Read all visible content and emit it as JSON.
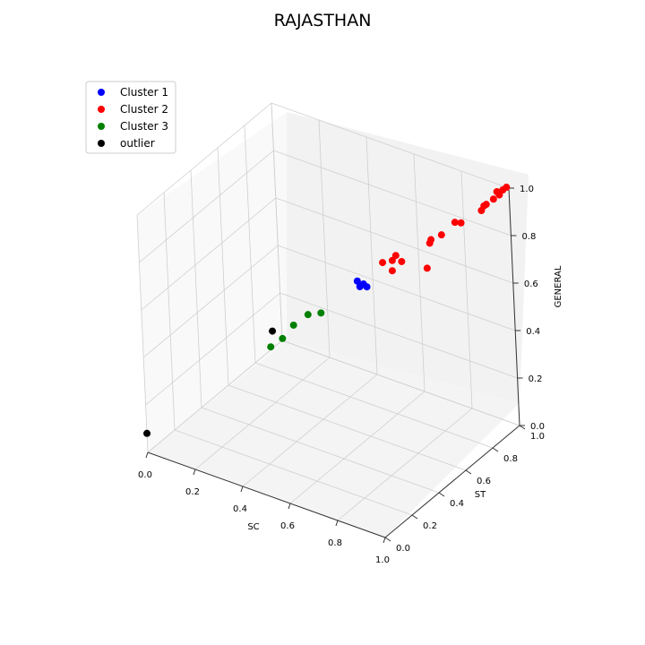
{
  "chart_data": {
    "type": "scatter3d",
    "title": "RAJASTHAN",
    "xlabel": "SC",
    "ylabel": "ST",
    "zlabel": "GENERAL",
    "xlim": [
      0,
      1
    ],
    "ylim": [
      0,
      1
    ],
    "zlim": [
      0,
      1
    ],
    "xticks": [
      "0.0",
      "0.2",
      "0.4",
      "0.6",
      "0.8",
      "1.0"
    ],
    "yticks": [
      "0.0",
      "0.2",
      "0.4",
      "0.6",
      "0.8",
      "1.0"
    ],
    "zticks": [
      "0.0",
      "0.2",
      "0.4",
      "0.6",
      "0.8",
      "1.0"
    ],
    "grid": true,
    "legend_position": "top-left",
    "series": [
      {
        "name": "Cluster 1",
        "color": "#0000ff",
        "points": [
          [
            0.56,
            0.62,
            0.63
          ],
          [
            0.57,
            0.62,
            0.61
          ],
          [
            0.58,
            0.63,
            0.62
          ],
          [
            0.6,
            0.62,
            0.62
          ]
        ]
      },
      {
        "name": "Cluster 2",
        "color": "#ff0000",
        "points": [
          [
            0.99,
            1.0,
            1.0
          ],
          [
            0.98,
            0.99,
            0.99
          ],
          [
            0.97,
            0.98,
            0.97
          ],
          [
            0.96,
            0.98,
            0.98
          ],
          [
            0.95,
            0.97,
            0.95
          ],
          [
            0.93,
            0.95,
            0.93
          ],
          [
            0.92,
            0.95,
            0.92
          ],
          [
            0.92,
            0.93,
            0.91
          ],
          [
            0.86,
            0.88,
            0.86
          ],
          [
            0.84,
            0.87,
            0.86
          ],
          [
            0.81,
            0.82,
            0.82
          ],
          [
            0.77,
            0.81,
            0.79
          ],
          [
            0.77,
            0.8,
            0.78
          ],
          [
            0.79,
            0.74,
            0.71
          ],
          [
            0.7,
            0.71,
            0.72
          ],
          [
            0.66,
            0.71,
            0.71
          ],
          [
            0.67,
            0.72,
            0.73
          ],
          [
            0.63,
            0.69,
            0.7
          ],
          [
            0.67,
            0.69,
            0.68
          ]
        ]
      },
      {
        "name": "Cluster 3",
        "color": "#008000",
        "points": [
          [
            0.47,
            0.5,
            0.52
          ],
          [
            0.42,
            0.49,
            0.5
          ],
          [
            0.38,
            0.45,
            0.46
          ],
          [
            0.36,
            0.4,
            0.42
          ],
          [
            0.32,
            0.38,
            0.38
          ]
        ]
      },
      {
        "name": "outlier",
        "color": "#000000",
        "points": [
          [
            0.33,
            0.38,
            0.45
          ],
          [
            0.0,
            0.0,
            0.08
          ]
        ]
      }
    ]
  }
}
